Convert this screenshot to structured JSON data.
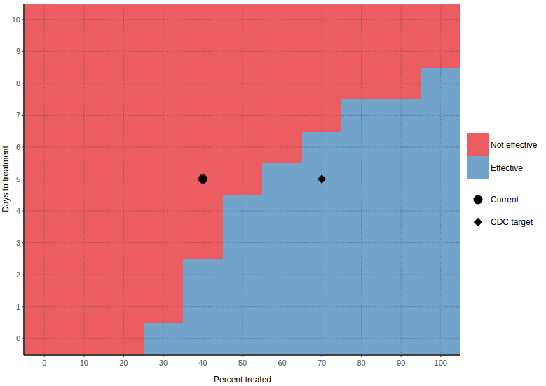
{
  "chart_data": {
    "type": "heatmap",
    "x_label": "Percent treated",
    "y_label": "Days to treatment",
    "x": [
      0,
      10,
      20,
      30,
      40,
      50,
      60,
      70,
      80,
      90,
      100
    ],
    "y": [
      0,
      1,
      2,
      3,
      4,
      5,
      6,
      7,
      8,
      9,
      10
    ],
    "classes": [
      {
        "name": "Not effective",
        "color": "#ec5d62"
      },
      {
        "name": "Effective",
        "color": "#72a4cb"
      }
    ],
    "cells": [
      [
        0,
        0,
        0,
        1,
        1,
        1,
        1,
        1,
        1,
        1,
        1
      ],
      [
        0,
        0,
        0,
        0,
        1,
        1,
        1,
        1,
        1,
        1,
        1
      ],
      [
        0,
        0,
        0,
        0,
        1,
        1,
        1,
        1,
        1,
        1,
        1
      ],
      [
        0,
        0,
        0,
        0,
        0,
        1,
        1,
        1,
        1,
        1,
        1
      ],
      [
        0,
        0,
        0,
        0,
        0,
        1,
        1,
        1,
        1,
        1,
        1
      ],
      [
        0,
        0,
        0,
        0,
        0,
        0,
        1,
        1,
        1,
        1,
        1
      ],
      [
        0,
        0,
        0,
        0,
        0,
        0,
        0,
        1,
        1,
        1,
        1
      ],
      [
        0,
        0,
        0,
        0,
        0,
        0,
        0,
        0,
        1,
        1,
        1
      ],
      [
        0,
        0,
        0,
        0,
        0,
        0,
        0,
        0,
        0,
        0,
        1
      ],
      [
        0,
        0,
        0,
        0,
        0,
        0,
        0,
        0,
        0,
        0,
        0
      ],
      [
        0,
        0,
        0,
        0,
        0,
        0,
        0,
        0,
        0,
        0,
        0
      ]
    ],
    "points": [
      {
        "name": "Current",
        "x": 40,
        "y": 5,
        "marker": "circle",
        "color": "#000000"
      },
      {
        "name": "CDC target",
        "x": 70,
        "y": 5,
        "marker": "diamond",
        "color": "#000000"
      }
    ],
    "xlim": [
      -5,
      105
    ],
    "ylim": [
      -0.5,
      10.5
    ],
    "xticks": [
      0,
      10,
      20,
      30,
      40,
      50,
      60,
      70,
      80,
      90,
      100
    ],
    "yticks": [
      0,
      1,
      2,
      3,
      4,
      5,
      6,
      7,
      8,
      9,
      10
    ],
    "grid": true,
    "legend": "right"
  }
}
